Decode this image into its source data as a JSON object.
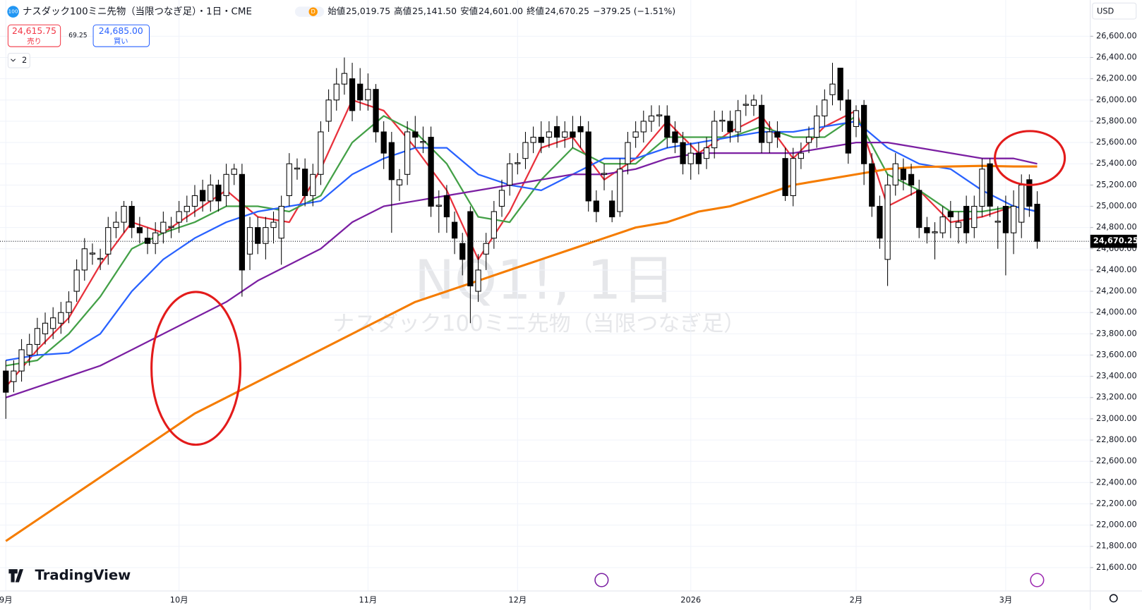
{
  "header": {
    "symbol_badge": "100",
    "title_line": "ナスダック100ミニ先物（当限つなぎ足）・1日・CME",
    "badge_d": "D",
    "ohlc": [
      {
        "label": "始値",
        "value": "25,019.75"
      },
      {
        "label": "高値",
        "value": "25,141.50"
      },
      {
        "label": "安値",
        "value": "24,601.00"
      },
      {
        "label": "終値",
        "value": "24,670.25"
      }
    ],
    "change": "−379.25 (−1.51%)",
    "sell_price": "24,615.75",
    "sell_label": "売り",
    "spread": "69.25",
    "buy_price": "24,685.00",
    "buy_label": "買い",
    "indicators_count": "2"
  },
  "currency": "USD",
  "watermark_symbol": "NQ1!, 1日",
  "watermark_name": "ナスダック100ミニ先物（当限つなぎ足）",
  "logo": "TradingView",
  "chart_data": {
    "type": "candlestick",
    "grid": true,
    "up_color": "#ffffff",
    "down_color": "#000000",
    "categories": [
      "9月",
      null,
      null,
      null,
      null,
      null,
      null,
      null,
      null,
      null,
      null,
      null,
      null,
      null,
      null,
      null,
      null,
      null,
      null,
      null,
      null,
      null,
      "10月",
      null,
      null,
      null,
      null,
      null,
      null,
      null,
      null,
      null,
      null,
      null,
      null,
      null,
      null,
      null,
      null,
      null,
      null,
      null,
      null,
      null,
      null,
      null,
      "11月",
      null,
      null,
      null,
      null,
      null,
      null,
      null,
      null,
      null,
      null,
      null,
      null,
      null,
      null,
      null,
      null,
      null,
      null,
      "12月",
      null,
      null,
      null,
      null,
      null,
      null,
      null,
      null,
      null,
      null,
      null,
      null,
      null,
      null,
      null,
      null,
      null,
      null,
      null,
      null,
      null,
      "2026",
      null,
      null,
      null,
      null,
      null,
      null,
      null,
      null,
      null,
      null,
      null,
      null,
      null,
      null,
      null,
      null,
      null,
      null,
      null,
      null,
      "2月",
      null,
      null,
      null,
      null,
      null,
      null,
      null,
      null,
      null,
      null,
      null,
      null,
      null,
      null,
      null,
      null,
      null,
      null,
      "3月",
      null,
      null,
      null,
      null
    ],
    "open": [
      23450,
      23350,
      23450,
      23600,
      23700,
      23800,
      23850,
      23900,
      24000,
      24200,
      24400,
      24550,
      24500,
      24550,
      24800,
      24850,
      25000,
      24800,
      24700,
      24650,
      24750,
      24800,
      24850,
      24950,
      25000,
      25150,
      25050,
      25200,
      25100,
      25300,
      25300,
      24550,
      24800,
      24650,
      24800,
      24700,
      25100,
      25350,
      25350,
      25100,
      25300,
      25800,
      26000,
      26150,
      26200,
      26150,
      26000,
      26100,
      25700,
      25600,
      25200,
      25300,
      25700,
      25600,
      25650,
      25000,
      25100,
      24850,
      24650,
      24950,
      24200,
      24550,
      24700,
      25000,
      25200,
      25400,
      25450,
      25600,
      25650,
      25650,
      25750,
      25650,
      25700,
      25750,
      25700,
      25050,
      25300,
      25050,
      24950,
      25400,
      25650,
      25700,
      25800,
      25850,
      25850,
      25700,
      25600,
      25400,
      25500,
      25450,
      25550,
      25800,
      25800,
      25700,
      25950,
      25950,
      25950,
      25600,
      25700,
      25450,
      25100,
      25450,
      25600,
      25650,
      25850,
      26050,
      26300,
      26000,
      25750,
      25950,
      25400,
      25000,
      24500,
      25200,
      25350,
      25300,
      25150,
      24800,
      24750,
      24750,
      24950,
      24800,
      25000,
      24800,
      25000,
      25400,
      24850,
      25000,
      24750,
      24850,
      25250,
      25019.75
    ],
    "high": [
      23550,
      23550,
      23750,
      23800,
      23950,
      24000,
      24050,
      24100,
      24200,
      24500,
      24700,
      24650,
      24600,
      24900,
      24950,
      25050,
      25050,
      24900,
      24800,
      24850,
      24950,
      24900,
      25050,
      25100,
      25200,
      25250,
      25300,
      25250,
      25400,
      25400,
      25400,
      24900,
      24900,
      24900,
      24950,
      25100,
      25500,
      25450,
      25450,
      25400,
      25800,
      26100,
      26300,
      26400,
      26350,
      26300,
      26250,
      26150,
      25800,
      25700,
      25350,
      25800,
      25850,
      25750,
      25750,
      25150,
      25200,
      24950,
      24750,
      25000,
      24550,
      24750,
      25050,
      25250,
      25500,
      25500,
      25700,
      25750,
      25800,
      25800,
      25850,
      25800,
      25850,
      25850,
      25800,
      25150,
      25400,
      25150,
      25450,
      25700,
      25800,
      25900,
      25950,
      25950,
      25950,
      25800,
      25700,
      25600,
      25600,
      25650,
      25900,
      25900,
      25900,
      26000,
      26050,
      26050,
      26050,
      25800,
      25800,
      25550,
      25550,
      25600,
      25750,
      25950,
      26100,
      26350,
      26300,
      26100,
      25950,
      26000,
      25500,
      25100,
      25300,
      25500,
      25450,
      25400,
      25250,
      24900,
      24850,
      25000,
      25050,
      24950,
      25100,
      25100,
      25450,
      25450,
      25000,
      25100,
      25150,
      25300,
      25300,
      25141.5
    ],
    "low": [
      23000,
      23250,
      23350,
      23500,
      23600,
      23700,
      23750,
      23800,
      23900,
      24100,
      24300,
      24450,
      24400,
      24450,
      24700,
      24750,
      24700,
      24650,
      24550,
      24550,
      24650,
      24700,
      24750,
      24850,
      24900,
      24950,
      24950,
      24950,
      25000,
      25200,
      24150,
      24400,
      24550,
      24500,
      24650,
      24450,
      25000,
      25250,
      25000,
      25000,
      25200,
      25700,
      25900,
      26050,
      25800,
      25900,
      25900,
      25600,
      25350,
      24750,
      25050,
      25200,
      25550,
      25500,
      24900,
      24750,
      24750,
      24550,
      24350,
      23900,
      24100,
      24400,
      24600,
      24900,
      25100,
      25300,
      25350,
      25500,
      25500,
      25550,
      25550,
      25550,
      25550,
      25550,
      24950,
      24850,
      25150,
      24850,
      24900,
      25300,
      25550,
      25600,
      25700,
      25750,
      25550,
      25500,
      25300,
      25250,
      25300,
      25350,
      25450,
      25700,
      25600,
      25600,
      25850,
      25850,
      25500,
      25500,
      25550,
      25050,
      25000,
      25350,
      25500,
      25550,
      25750,
      25950,
      25900,
      25400,
      25650,
      25200,
      24900,
      24600,
      24250,
      25100,
      25150,
      25100,
      24700,
      24650,
      24500,
      24700,
      24700,
      24650,
      24650,
      24700,
      24900,
      24900,
      24600,
      24350,
      24550,
      24700,
      24900,
      24601
    ],
    "close": [
      23250,
      23450,
      23650,
      23700,
      23850,
      23900,
      23950,
      24000,
      24100,
      24400,
      24600,
      24560,
      24510,
      24800,
      24850,
      25000,
      24800,
      24750,
      24650,
      24750,
      24850,
      24810,
      24950,
      25000,
      25100,
      25050,
      25200,
      25050,
      25300,
      25350,
      24400,
      24800,
      24650,
      24800,
      24850,
      25000,
      25400,
      25360,
      25100,
      25300,
      25700,
      26000,
      26150,
      26250,
      25900,
      26000,
      26100,
      25700,
      25500,
      25250,
      25250,
      25700,
      25650,
      25610,
      25000,
      25010,
      24900,
      24700,
      24500,
      24250,
      24400,
      24650,
      24950,
      25150,
      25400,
      25410,
      25600,
      25650,
      25600,
      25700,
      25650,
      25700,
      25650,
      25700,
      25050,
      24950,
      25310,
      24900,
      25350,
      25600,
      25700,
      25800,
      25850,
      25860,
      25650,
      25600,
      25400,
      25500,
      25400,
      25550,
      25800,
      25810,
      25700,
      25900,
      25960,
      26000,
      25600,
      25700,
      25650,
      25100,
      25450,
      25500,
      25650,
      25850,
      26000,
      26150,
      26000,
      25500,
      25900,
      25400,
      25000,
      24700,
      25200,
      25400,
      25250,
      25200,
      24800,
      24750,
      24760,
      24900,
      24900,
      24850,
      24750,
      25000,
      25350,
      25000,
      24860,
      24750,
      25000,
      25200,
      25000,
      24670.25
    ],
    "last_price_label": "24,670.25",
    "series": [
      {
        "color": "#e8313c",
        "x": [
          0,
          4,
          8,
          12,
          16,
          20,
          24,
          28,
          32,
          36,
          40,
          44,
          48,
          52,
          56,
          60,
          64,
          68,
          72,
          76,
          80,
          84,
          88,
          92,
          96,
          100,
          104,
          108,
          112,
          116,
          120,
          124,
          128,
          131
        ],
        "values": [
          23300,
          23650,
          23950,
          24450,
          24850,
          24750,
          24950,
          25150,
          24900,
          24850,
          25350,
          26000,
          25900,
          25550,
          25150,
          24500,
          24950,
          25550,
          25650,
          25250,
          25450,
          25800,
          25500,
          25700,
          25850,
          25450,
          25750,
          25900,
          25000,
          25150,
          24850,
          24900,
          25000,
          24950
        ]
      },
      {
        "color": "#43a047",
        "x": [
          0,
          4,
          8,
          12,
          16,
          20,
          24,
          28,
          32,
          36,
          40,
          44,
          48,
          52,
          56,
          60,
          64,
          68,
          72,
          76,
          80,
          84,
          88,
          92,
          96,
          100,
          104,
          108,
          112,
          116,
          120,
          124,
          128,
          131
        ],
        "values": [
          23500,
          23550,
          23800,
          24150,
          24600,
          24750,
          24850,
          25000,
          25000,
          24950,
          25100,
          25600,
          25850,
          25700,
          25400,
          24900,
          24850,
          25250,
          25550,
          25400,
          25400,
          25650,
          25650,
          25650,
          25750,
          25650,
          25650,
          25850,
          25300,
          25150,
          24950,
          24950,
          25000,
          24950
        ]
      },
      {
        "color": "#2962ff",
        "x": [
          0,
          4,
          8,
          12,
          16,
          20,
          24,
          28,
          32,
          36,
          40,
          44,
          48,
          52,
          56,
          60,
          64,
          68,
          72,
          76,
          80,
          84,
          88,
          92,
          96,
          100,
          104,
          108,
          112,
          116,
          120,
          124,
          128,
          131
        ],
        "values": [
          23550,
          23600,
          23620,
          23800,
          24200,
          24500,
          24700,
          24850,
          24950,
          25000,
          25050,
          25300,
          25450,
          25550,
          25550,
          25300,
          25200,
          25150,
          25300,
          25450,
          25450,
          25550,
          25600,
          25650,
          25700,
          25700,
          25750,
          25800,
          25550,
          25400,
          25350,
          25150,
          25000,
          24950
        ]
      },
      {
        "color": "#7b1fa2",
        "x": [
          0,
          4,
          8,
          12,
          16,
          20,
          24,
          28,
          32,
          36,
          40,
          44,
          48,
          52,
          56,
          60,
          64,
          68,
          72,
          76,
          80,
          84,
          88,
          92,
          96,
          100,
          104,
          108,
          112,
          116,
          120,
          124,
          128,
          131
        ],
        "values": [
          23200,
          23300,
          23400,
          23500,
          23650,
          23800,
          23950,
          24100,
          24300,
          24450,
          24600,
          24850,
          25000,
          25050,
          25100,
          25150,
          25200,
          25250,
          25300,
          25300,
          25350,
          25450,
          25500,
          25500,
          25500,
          25500,
          25550,
          25600,
          25600,
          25550,
          25500,
          25450,
          25450,
          25400
        ]
      },
      {
        "color": "#f57c00",
        "x": [
          0,
          4,
          8,
          12,
          16,
          20,
          24,
          28,
          32,
          36,
          40,
          44,
          48,
          52,
          56,
          60,
          64,
          68,
          72,
          76,
          80,
          84,
          88,
          92,
          96,
          100,
          104,
          108,
          112,
          116,
          120,
          124,
          128,
          131
        ],
        "values": [
          21850,
          22050,
          22250,
          22450,
          22650,
          22850,
          23050,
          23200,
          23350,
          23500,
          23650,
          23800,
          23950,
          24100,
          24200,
          24300,
          24400,
          24500,
          24600,
          24700,
          24800,
          24850,
          24950,
          25000,
          25100,
          25200,
          25250,
          25300,
          25350,
          25370,
          25375,
          25380,
          25375,
          25375
        ]
      }
    ],
    "ylim": [
      21380,
      26940
    ],
    "yticks": [
      {
        "value": 21600,
        "label": "21,600.00"
      },
      {
        "value": 21800,
        "label": "21,800.00"
      },
      {
        "value": 22000,
        "label": "22,000.00"
      },
      {
        "value": 22200,
        "label": "22,200.00"
      },
      {
        "value": 22400,
        "label": "22,400.00"
      },
      {
        "value": 22600,
        "label": "22,600.00"
      },
      {
        "value": 22800,
        "label": "22,800.00"
      },
      {
        "value": 23000,
        "label": "23,000.00"
      },
      {
        "value": 23200,
        "label": "23,200.00"
      },
      {
        "value": 23400,
        "label": "23,400.00"
      },
      {
        "value": 23600,
        "label": "23,600.00"
      },
      {
        "value": 23800,
        "label": "23,800.00"
      },
      {
        "value": 24000,
        "label": "24,000.00"
      },
      {
        "value": 24200,
        "label": "24,200.00"
      },
      {
        "value": 24400,
        "label": "24,400.00"
      },
      {
        "value": 24600,
        "label": "24,600.00"
      },
      {
        "value": 24800,
        "label": "24,800.00"
      },
      {
        "value": 25000,
        "label": "25,000.00"
      },
      {
        "value": 25200,
        "label": "25,200.00"
      },
      {
        "value": 25400,
        "label": "25,400.00"
      },
      {
        "value": 25600,
        "label": "25,600.00"
      },
      {
        "value": 25800,
        "label": "25,800.00"
      },
      {
        "value": 26000,
        "label": "26,000.00"
      },
      {
        "value": 26200,
        "label": "26,200.00"
      },
      {
        "value": 26400,
        "label": "26,400.00"
      },
      {
        "value": 26600,
        "label": "26,600.00"
      }
    ]
  }
}
